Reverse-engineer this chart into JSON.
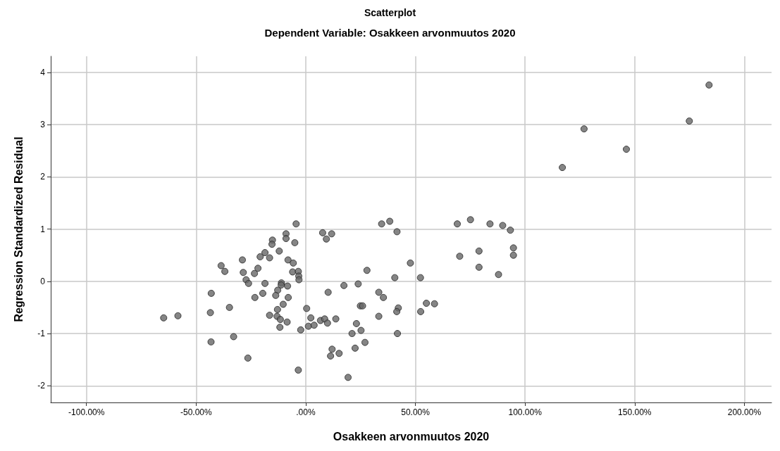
{
  "chart_data": {
    "type": "scatter",
    "title": "Scatterplot",
    "subtitle": "Dependent Variable: Osakkeen arvonmuutos 2020",
    "xlabel": "Osakkeen arvonmuutos 2020",
    "ylabel": "Regression Standardized Residual",
    "xlim": [
      -116.3,
      212.4
    ],
    "ylim": [
      -2.32,
      4.31
    ],
    "xticks": [
      {
        "value": -100,
        "label": "-100.00%"
      },
      {
        "value": -50,
        "label": "-50.00%"
      },
      {
        "value": 0,
        "label": ".00%"
      },
      {
        "value": 50,
        "label": "50.00%"
      },
      {
        "value": 100,
        "label": "100.00%"
      },
      {
        "value": 150,
        "label": "150.00%"
      },
      {
        "value": 200,
        "label": "200.00%"
      }
    ],
    "yticks": [
      -2,
      -1,
      0,
      1,
      2,
      3,
      4
    ],
    "grid": true,
    "marker": "circle",
    "series": [
      {
        "color": "#666666",
        "x": [
          -4.4,
          -9.0,
          -9.0,
          -15.2,
          -15.4,
          -5.0,
          -12.1,
          -18.6,
          -20.8,
          -16.5,
          -28.9,
          -8.1,
          -5.7,
          -38.6,
          -36.9,
          -28.5,
          -21.8,
          -23.4,
          -6.0,
          -3.4,
          -3.2,
          -3.1,
          -27.2,
          -26.1,
          -18.6,
          -11.1,
          -11.2,
          -8.3,
          -12.8,
          -13.7,
          -19.6,
          -23.2,
          -8.0,
          -43.1,
          -10.3,
          0.4,
          -34.8,
          -12.9,
          -43.5,
          -16.5,
          -13.1,
          -11.6,
          -8.5,
          -11.8,
          2.3,
          1.2,
          3.8,
          6.7,
          -2.3,
          -64.8,
          -58.3,
          -43.2,
          -32.9,
          -26.4,
          -3.4,
          7.7,
          11.8,
          9.4,
          34.6,
          38.3,
          41.6,
          69.1,
          75.1,
          70.2,
          47.7,
          27.9,
          40.6,
          52.3,
          17.4,
          23.9,
          10.2,
          33.3,
          35.4,
          24.9,
          25.9,
          42.2,
          41.5,
          55.0,
          58.7,
          52.4,
          33.3,
          8.6,
          9.9,
          13.7,
          23.1,
          25.2,
          21.1,
          41.8,
          27.0,
          22.5,
          12.0,
          11.3,
          15.2,
          19.3,
          84.0,
          89.8,
          93.3,
          79.0,
          94.7,
          94.7,
          79.0,
          87.9,
          183.9,
          174.9,
          146.2,
          126.9,
          117.0
        ],
        "values": [
          1.1,
          0.91,
          0.82,
          0.79,
          0.71,
          0.74,
          0.58,
          0.55,
          0.47,
          0.45,
          0.41,
          0.41,
          0.35,
          0.3,
          0.19,
          0.17,
          0.25,
          0.15,
          0.18,
          0.19,
          0.1,
          0.03,
          0.03,
          -0.04,
          -0.04,
          -0.03,
          -0.07,
          -0.09,
          -0.17,
          -0.27,
          -0.23,
          -0.31,
          -0.31,
          -0.23,
          -0.44,
          -0.52,
          -0.5,
          -0.54,
          -0.6,
          -0.65,
          -0.67,
          -0.73,
          -0.78,
          -0.88,
          -0.7,
          -0.86,
          -0.84,
          -0.75,
          -0.93,
          -0.7,
          -0.66,
          -1.16,
          -1.06,
          -1.47,
          -1.7,
          0.93,
          0.91,
          0.81,
          1.1,
          1.15,
          0.95,
          1.1,
          1.18,
          0.48,
          0.35,
          0.21,
          0.07,
          0.07,
          -0.08,
          -0.05,
          -0.21,
          -0.21,
          -0.31,
          -0.47,
          -0.47,
          -0.51,
          -0.58,
          -0.42,
          -0.43,
          -0.58,
          -0.67,
          -0.72,
          -0.8,
          -0.72,
          -0.81,
          -0.94,
          -1.0,
          -1.0,
          -1.17,
          -1.28,
          -1.3,
          -1.43,
          -1.38,
          -1.84,
          1.1,
          1.07,
          0.98,
          0.58,
          0.64,
          0.5,
          0.27,
          0.13,
          3.76,
          3.07,
          2.53,
          2.92,
          2.18
        ]
      }
    ]
  }
}
